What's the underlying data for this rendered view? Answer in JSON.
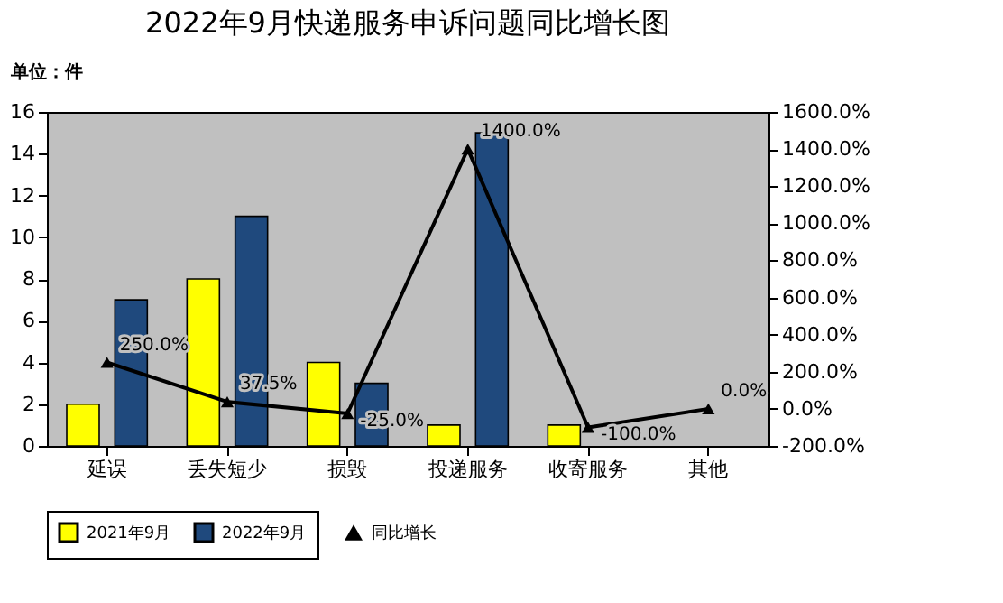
{
  "chart_data": {
    "type": "bar",
    "title": "2022年9月快递服务申诉问题同比增长图",
    "annotations": [
      "单位：件"
    ],
    "categories": [
      "延误",
      "丢失短少",
      "损毁",
      "投递服务",
      "收寄服务",
      "其他"
    ],
    "series": [
      {
        "name": "2021年9月",
        "color": "#ffff00",
        "values": [
          2,
          8,
          4,
          1,
          1,
          0
        ]
      },
      {
        "name": "2022年9月",
        "color": "#1f497d",
        "values": [
          7,
          11,
          3,
          15,
          0,
          0
        ]
      },
      {
        "name": "同比增长",
        "type": "line",
        "axis": "y2",
        "color": "#000000",
        "marker": "triangle",
        "values": [
          250,
          37.5,
          -25,
          1400,
          -100,
          0
        ],
        "value_labels": [
          "250.0%",
          "37.5%",
          "-25.0%",
          "1400.0%",
          "-100.0%",
          "0.0%"
        ]
      }
    ],
    "ylim": [
      0,
      16
    ],
    "yticks": [
      0,
      2,
      4,
      6,
      8,
      10,
      12,
      14,
      16
    ],
    "y2lim": [
      -200,
      1600
    ],
    "y2ticks": [
      {
        "value": -200,
        "label": "-200.0%"
      },
      {
        "value": 0,
        "label": "0.0%"
      },
      {
        "value": 200,
        "label": "200.0%"
      },
      {
        "value": 400,
        "label": "400.0%"
      },
      {
        "value": 600,
        "label": "600.0%"
      },
      {
        "value": 800,
        "label": "800.0%"
      },
      {
        "value": 1000,
        "label": "1000.0%"
      },
      {
        "value": 1200,
        "label": "1200.0%"
      },
      {
        "value": 1400,
        "label": "1400.0%"
      },
      {
        "value": 1600,
        "label": "1600.0%"
      }
    ],
    "legend": "bottom",
    "grid": false
  }
}
